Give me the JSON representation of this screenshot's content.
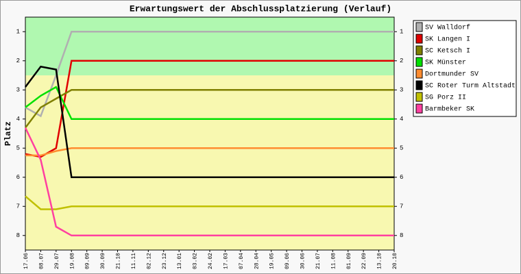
{
  "chart_data": {
    "type": "line",
    "title": "Erwartungswert der Abschlussplatzierung (Verlauf)",
    "y_label": "Platz",
    "categories": [
      "17.06",
      "08.07",
      "29.07",
      "19.08",
      "09.09",
      "30.09",
      "21.10",
      "11.11",
      "02.12",
      "23.12",
      "13.01",
      "03.02",
      "24.02",
      "17.03",
      "07.04",
      "28.04",
      "19.05",
      "09.06",
      "30.06",
      "21.07",
      "11.08",
      "01.09",
      "22.09",
      "13.10",
      "20.10"
    ],
    "ylim": [
      0.5,
      8.5
    ],
    "y_inverted": true,
    "yticks": [
      1,
      2,
      3,
      4,
      5,
      6,
      7,
      8
    ],
    "bands": [
      {
        "from": 0.5,
        "to": 2.5,
        "color": "#b0f8b0"
      },
      {
        "from": 2.5,
        "to": 8.5,
        "color": "#f8f8b0"
      }
    ],
    "legend": "right",
    "series": [
      {
        "name": "SV Walldorf",
        "color": "#b0b0b0",
        "values": [
          3.6,
          3.9,
          2.5,
          1,
          1,
          1,
          1,
          1,
          1,
          1,
          1,
          1,
          1,
          1,
          1,
          1,
          1,
          1,
          1,
          1,
          1,
          1,
          1,
          1,
          1
        ]
      },
      {
        "name": "SK Langen I",
        "color": "#e00000",
        "values": [
          5.2,
          5.3,
          5.0,
          2,
          2,
          2,
          2,
          2,
          2,
          2,
          2,
          2,
          2,
          2,
          2,
          2,
          2,
          2,
          2,
          2,
          2,
          2,
          2,
          2,
          2
        ]
      },
      {
        "name": "SC Ketsch I",
        "color": "#808000",
        "values": [
          4.3,
          3.6,
          3.3,
          3,
          3,
          3,
          3,
          3,
          3,
          3,
          3,
          3,
          3,
          3,
          3,
          3,
          3,
          3,
          3,
          3,
          3,
          3,
          3,
          3,
          3
        ]
      },
      {
        "name": "SK Münster",
        "color": "#00e000",
        "values": [
          3.6,
          3.2,
          2.9,
          4,
          4,
          4,
          4,
          4,
          4,
          4,
          4,
          4,
          4,
          4,
          4,
          4,
          4,
          4,
          4,
          4,
          4,
          4,
          4,
          4,
          4
        ]
      },
      {
        "name": "Dortmunder SV",
        "color": "#ff8c30",
        "values": [
          5.25,
          5.25,
          5.1,
          5,
          5,
          5,
          5,
          5,
          5,
          5,
          5,
          5,
          5,
          5,
          5,
          5,
          5,
          5,
          5,
          5,
          5,
          5,
          5,
          5,
          5
        ]
      },
      {
        "name": "SC Roter Turm Altstadt",
        "color": "#000000",
        "values": [
          2.9,
          2.2,
          2.3,
          6,
          6,
          6,
          6,
          6,
          6,
          6,
          6,
          6,
          6,
          6,
          6,
          6,
          6,
          6,
          6,
          6,
          6,
          6,
          6,
          6,
          6
        ]
      },
      {
        "name": "SG Porz II",
        "color": "#c0c000",
        "values": [
          6.65,
          7.1,
          7.1,
          7,
          7,
          7,
          7,
          7,
          7,
          7,
          7,
          7,
          7,
          7,
          7,
          7,
          7,
          7,
          7,
          7,
          7,
          7,
          7,
          7,
          7
        ]
      },
      {
        "name": "Barmbeker SK",
        "color": "#ff40a0",
        "values": [
          4.3,
          5.4,
          7.7,
          8,
          8,
          8,
          8,
          8,
          8,
          8,
          8,
          8,
          8,
          8,
          8,
          8,
          8,
          8,
          8,
          8,
          8,
          8,
          8,
          8,
          8
        ]
      }
    ]
  }
}
